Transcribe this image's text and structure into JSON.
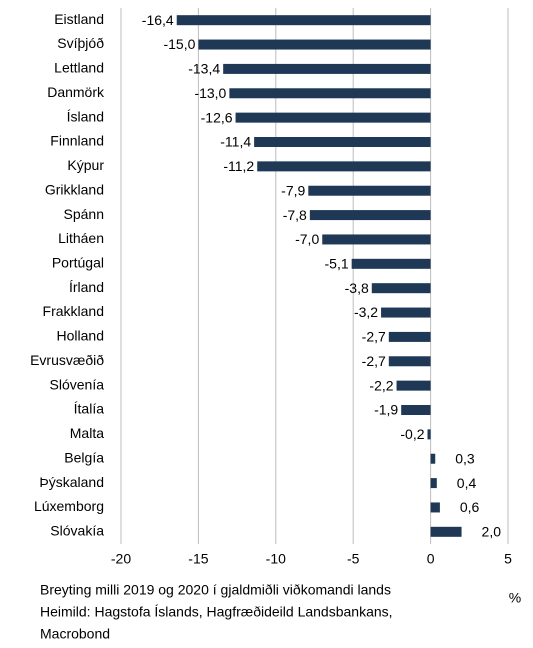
{
  "chart_data": {
    "type": "bar",
    "orientation": "horizontal",
    "categories": [
      "Eistland",
      "Svíþjóð",
      "Lettland",
      "Danmörk",
      "Ísland",
      "Finnland",
      "Kýpur",
      "Grikkland",
      "Spánn",
      "Litháen",
      "Portúgal",
      "Írland",
      "Frakkland",
      "Holland",
      "Evrusvæðið",
      "Slóvenía",
      "Ítalía",
      "Malta",
      "Belgía",
      "Þýskaland",
      "Lúxemborg",
      "Slóvakía"
    ],
    "values": [
      -16.4,
      -15.0,
      -13.4,
      -13.0,
      -12.6,
      -11.4,
      -11.2,
      -7.9,
      -7.8,
      -7.0,
      -5.1,
      -3.8,
      -3.2,
      -2.7,
      -2.7,
      -2.2,
      -1.9,
      -0.2,
      0.3,
      0.4,
      0.6,
      2.0
    ],
    "value_labels": [
      "-16,4",
      "-15,0",
      "-13,4",
      "-13,0",
      "-12,6",
      "-11,4",
      "-11,2",
      "-7,9",
      "-7,8",
      "-7,0",
      "-5,1",
      "-3,8",
      "-3,2",
      "-2,7",
      "-2,7",
      "-2,2",
      "-1,9",
      "-0,2",
      "0,3",
      "0,4",
      "0,6",
      "2,0"
    ],
    "color": "#1e3856",
    "xlim": [
      -20,
      5
    ],
    "xticks": [
      -20,
      -15,
      -10,
      -5,
      0,
      5
    ],
    "grid": true,
    "x_label": "%",
    "notes": [
      "Breyting milli 2019 og 2020 í gjaldmiðli viðkomandi lands",
      "Heimild: Hagstofa Íslands, Hagfræðideild Landsbankans,",
      "Macrobond"
    ]
  }
}
